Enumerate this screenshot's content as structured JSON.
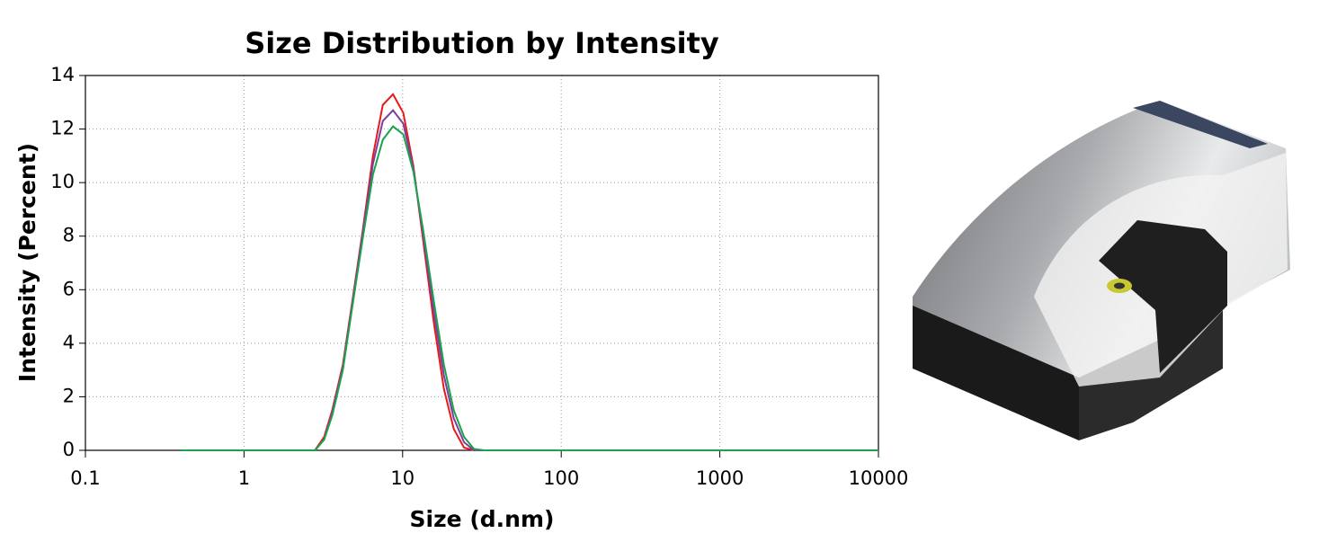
{
  "chart_data": {
    "type": "line",
    "title": "Size Distribution by Intensity",
    "x_label": "Size (d.nm)",
    "y_label": "Intensity (Percent)",
    "x": [
      0.4,
      1,
      2,
      2.8,
      3.2,
      3.6,
      4.2,
      4.8,
      5.6,
      6.5,
      7.5,
      8.7,
      10.1,
      11.7,
      13.5,
      15.7,
      18.2,
      21,
      24.4,
      28.2,
      32.7,
      100,
      1000,
      10000
    ],
    "series": [
      {
        "color": "#e41a1c",
        "values": [
          0,
          0,
          0,
          0,
          0.5,
          1.5,
          3.2,
          5.5,
          8.2,
          11,
          12.9,
          13.3,
          12.6,
          10.6,
          7.8,
          4.8,
          2.3,
          0.8,
          0.1,
          0,
          0,
          0,
          0,
          0
        ]
      },
      {
        "color": "#7b3fa0",
        "values": [
          0,
          0,
          0,
          0,
          0.4,
          1.4,
          3.1,
          5.4,
          8.1,
          10.7,
          12.3,
          12.7,
          12.2,
          10.5,
          8,
          5.2,
          2.8,
          1.2,
          0.3,
          0,
          0,
          0,
          0,
          0
        ]
      },
      {
        "color": "#1aa34a",
        "values": [
          0,
          0,
          0,
          0,
          0.4,
          1.3,
          3,
          5.3,
          7.9,
          10.3,
          11.6,
          12.1,
          11.8,
          10.4,
          8.2,
          5.6,
          3.2,
          1.5,
          0.5,
          0.05,
          0,
          0,
          0,
          0
        ]
      }
    ],
    "x_log": true,
    "xlim": [
      0.1,
      10000
    ],
    "xticks": [
      0.1,
      1,
      10,
      100,
      1000,
      10000
    ],
    "ylim": [
      0,
      14
    ],
    "yticks": [
      0,
      2,
      4,
      6,
      8,
      10,
      12,
      14
    ],
    "grid": true
  }
}
